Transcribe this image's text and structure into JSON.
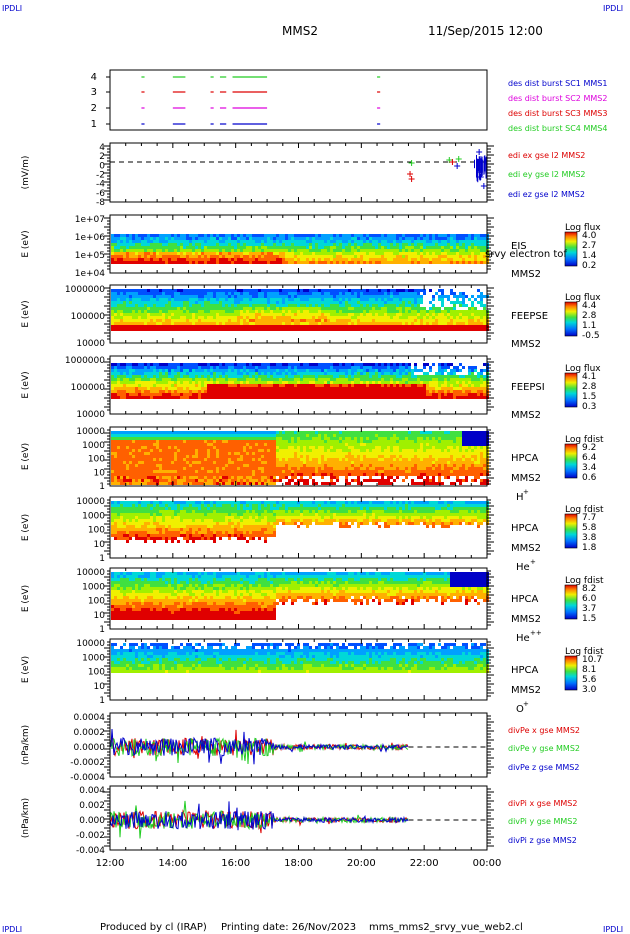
{
  "header": {
    "corner_label": "IPDLI",
    "mission": "MMS2",
    "datetime": "11/Sep/2015 12:00"
  },
  "footer": {
    "produced_by": "Produced by cl (IRAP)",
    "printing_date": "Printing date: 26/Nov/2023",
    "script_name": "mms_mms2_srvy_vue_web2.cl"
  },
  "time_axis": {
    "range_hours": [
      12,
      24
    ],
    "tick_labels": [
      "12:00",
      "14:00",
      "16:00",
      "18:00",
      "20:00",
      "22:00",
      "00:00"
    ]
  },
  "colors": {
    "red": "#dd0000",
    "magenta": "#dd00dd",
    "green": "#22cc22",
    "blue": "#0000cc"
  },
  "chart_data": [
    {
      "type": "line",
      "title": "burst availability",
      "y_ticks": [
        "4",
        "3",
        "2",
        "1"
      ],
      "legend": [
        {
          "label": "des dist burst SC1 MMS1",
          "color": "blue"
        },
        {
          "label": "des dist burst SC2 MMS2",
          "color": "magenta"
        },
        {
          "label": "des dist burst SC3 MMS3",
          "color": "red"
        },
        {
          "label": "des dist burst SC4 MMS4",
          "color": "green"
        }
      ],
      "segments_hours": [
        [
          13.0,
          13.1
        ],
        [
          14.0,
          14.4
        ],
        [
          15.2,
          15.3
        ],
        [
          15.5,
          15.7
        ],
        [
          15.9,
          17.0
        ],
        [
          20.5,
          20.6
        ]
      ]
    },
    {
      "type": "line",
      "ylabel": "(mV/m)",
      "y_ticks": [
        "4",
        "2",
        "0",
        "-2",
        "-4",
        "-6",
        "-8"
      ],
      "legend": [
        {
          "label": "edi ex gse l2 MMS2",
          "color": "red"
        },
        {
          "label": "edi ey gse l2 MMS2",
          "color": "green"
        },
        {
          "label": "edi ez gse l2 MMS2",
          "color": "blue"
        }
      ]
    },
    {
      "type": "heatmap",
      "ylabel": "E (eV)",
      "y_ticks": [
        "1e+07",
        "1e+06",
        "1e+05",
        "1e+04"
      ],
      "side_label": "EIS",
      "overlay_text": "srvy electron tof",
      "spacecraft": "MMS2",
      "colorbar_title": "Log flux",
      "colorbar_ticks": [
        "4.0",
        "2.7",
        "1.4",
        "0.2"
      ]
    },
    {
      "type": "heatmap",
      "ylabel": "E (eV)",
      "y_ticks": [
        "1000000",
        "100000",
        "10000"
      ],
      "side_label": "FEEPSE",
      "spacecraft": "MMS2",
      "colorbar_title": "Log flux",
      "colorbar_ticks": [
        "4.4",
        "2.8",
        "1.1",
        "-0.5"
      ]
    },
    {
      "type": "heatmap",
      "ylabel": "E (eV)",
      "y_ticks": [
        "1000000",
        "100000",
        "10000"
      ],
      "side_label": "FEEPSI",
      "spacecraft": "MMS2",
      "colorbar_title": "Log flux",
      "colorbar_ticks": [
        "4.1",
        "2.8",
        "1.5",
        "0.3"
      ]
    },
    {
      "type": "heatmap",
      "ylabel": "E (eV)",
      "y_ticks": [
        "10000",
        "1000",
        "100",
        "10",
        "1"
      ],
      "side_label": "HPCA",
      "spacecraft": "MMS2",
      "species": "H",
      "species_charge": "+",
      "colorbar_title": "Log fdist",
      "colorbar_ticks": [
        "9.2",
        "6.4",
        "3.4",
        "0.6"
      ]
    },
    {
      "type": "heatmap",
      "ylabel": "E (eV)",
      "y_ticks": [
        "10000",
        "1000",
        "100",
        "10",
        "1"
      ],
      "side_label": "HPCA",
      "spacecraft": "MMS2",
      "species": "He",
      "species_charge": "+",
      "colorbar_title": "Log fdist",
      "colorbar_ticks": [
        "7.7",
        "5.8",
        "3.8",
        "1.8"
      ]
    },
    {
      "type": "heatmap",
      "ylabel": "E (eV)",
      "y_ticks": [
        "10000",
        "1000",
        "100",
        "10",
        "1"
      ],
      "side_label": "HPCA",
      "spacecraft": "MMS2",
      "species": "He",
      "species_charge": "++",
      "colorbar_title": "Log fdist",
      "colorbar_ticks": [
        "8.2",
        "6.0",
        "3.7",
        "1.5"
      ]
    },
    {
      "type": "heatmap",
      "ylabel": "E (eV)",
      "y_ticks": [
        "10000",
        "1000",
        "100",
        "10",
        "1"
      ],
      "side_label": "HPCA",
      "spacecraft": "MMS2",
      "species": "O",
      "species_charge": "+",
      "colorbar_title": "Log fdist",
      "colorbar_ticks": [
        "10.7",
        "8.1",
        "5.6",
        "3.0"
      ]
    },
    {
      "type": "line",
      "ylabel": "(nPa/km)",
      "y_ticks": [
        "0.0004",
        "0.0002",
        "0.0000",
        "-0.0002",
        "-0.0004"
      ],
      "legend": [
        {
          "label": "divPe x gse MMS2",
          "color": "red"
        },
        {
          "label": "divPe y gse MMS2",
          "color": "green"
        },
        {
          "label": "divPe z gse MMS2",
          "color": "blue"
        }
      ]
    },
    {
      "type": "line",
      "ylabel": "(nPa/km)",
      "y_ticks": [
        "0.004",
        "0.002",
        "0.000",
        "-0.002",
        "-0.004"
      ],
      "legend": [
        {
          "label": "divPi x gse MMS2",
          "color": "red"
        },
        {
          "label": "divPi y gse MMS2",
          "color": "green"
        },
        {
          "label": "divPi z gse MMS2",
          "color": "blue"
        }
      ]
    }
  ]
}
